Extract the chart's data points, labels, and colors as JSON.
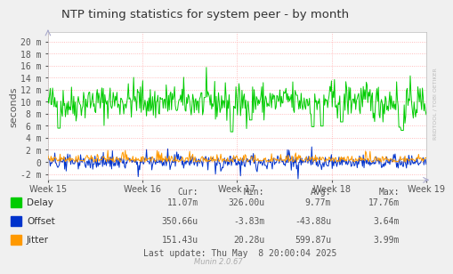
{
  "title": "NTP timing statistics for system peer - by month",
  "ylabel": "seconds",
  "background_color": "#f0f0f0",
  "plot_bg_color": "#ffffff",
  "grid_color_h": "#ffaaaa",
  "grid_color_v": "#ffaaaa",
  "x_tick_labels": [
    "Week 15",
    "Week 16",
    "Week 17",
    "Week 18",
    "Week 19"
  ],
  "ylim": [
    -0.003,
    0.0215
  ],
  "yticks": [
    -0.002,
    0.0,
    0.002,
    0.004,
    0.006,
    0.008,
    0.01,
    0.012,
    0.014,
    0.016,
    0.018,
    0.02
  ],
  "ytick_labels": [
    "-2 m",
    "0",
    "2 m",
    "4 m",
    "6 m",
    "8 m",
    "10 m",
    "12 m",
    "14 m",
    "16 m",
    "18 m",
    "20 m"
  ],
  "delay_color": "#00cc00",
  "offset_color": "#0033cc",
  "jitter_color": "#ff9900",
  "watermark": "RRDTOOL / TOBI OETIKER",
  "munin_version": "Munin 2.0.67",
  "legend": [
    {
      "label": "Delay",
      "color": "#00cc00"
    },
    {
      "label": "Offset",
      "color": "#0033cc"
    },
    {
      "label": "Jitter",
      "color": "#ff9900"
    }
  ],
  "stat_headers": [
    "Cur:",
    "Min:",
    "Avg:",
    "Max:"
  ],
  "stat_rows": [
    [
      "Delay",
      "11.07m",
      "326.00u",
      "9.77m",
      "17.76m"
    ],
    [
      "Offset",
      "350.66u",
      "-3.83m",
      "-43.88u",
      "3.64m"
    ],
    [
      "Jitter",
      "151.43u",
      "20.28u",
      "599.87u",
      "3.99m"
    ]
  ],
  "last_update": "Last update: Thu May  8 20:00:04 2025",
  "n_points": 500,
  "seed": 42
}
